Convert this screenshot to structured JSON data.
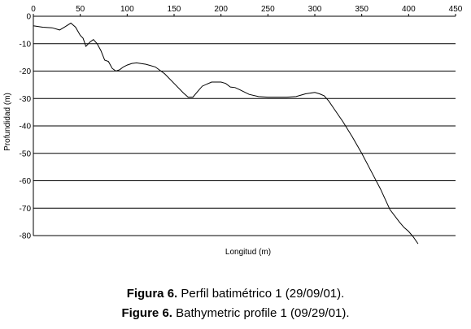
{
  "chart_data": {
    "type": "line",
    "xlabel": "Longitud (m)",
    "ylabel": "Profundidad (m)",
    "xlim": [
      0,
      450
    ],
    "ylim": [
      -80,
      0
    ],
    "xticks": [
      "0",
      "50",
      "100",
      "150",
      "200",
      "250",
      "300",
      "350",
      "400",
      "450"
    ],
    "yticks": [
      "0",
      "-10",
      "-20",
      "-30",
      "-40",
      "-50",
      "-60",
      "-70",
      "-80"
    ],
    "grid": "horizontal",
    "series": [
      {
        "color": "#000000",
        "x": [
          0,
          10,
          20,
          28,
          34,
          40,
          45,
          50,
          53,
          56,
          60,
          64,
          68,
          72,
          76,
          80,
          84,
          88,
          92,
          96,
          100,
          105,
          110,
          120,
          130,
          140,
          150,
          160,
          165,
          170,
          175,
          180,
          190,
          200,
          205,
          210,
          215,
          220,
          230,
          240,
          250,
          260,
          270,
          280,
          290,
          300,
          305,
          310,
          315,
          320,
          330,
          340,
          350,
          360,
          370,
          380,
          390,
          395,
          400,
          405,
          410
        ],
        "y": [
          -3.5,
          -4,
          -4.2,
          -5,
          -3.8,
          -2.5,
          -4,
          -7,
          -8,
          -11,
          -9.5,
          -8.5,
          -10,
          -12.5,
          -16,
          -16.5,
          -19,
          -20,
          -19.5,
          -18.5,
          -17.8,
          -17.2,
          -17,
          -17.5,
          -18.5,
          -21,
          -24.5,
          -28,
          -29.5,
          -29.5,
          -27.5,
          -25.5,
          -24,
          -24,
          -24.5,
          -25.8,
          -26,
          -26.8,
          -28.5,
          -29.3,
          -29.5,
          -29.5,
          -29.5,
          -29.3,
          -28.3,
          -27.8,
          -28.3,
          -29,
          -31,
          -33.5,
          -38.5,
          -44,
          -50,
          -56.5,
          -63,
          -70.5,
          -75,
          -77,
          -78.5,
          -80.5,
          -83
        ]
      }
    ]
  },
  "captions": {
    "es_label": "Figura 6.",
    "es_text": " Perfil batimétrico 1 (29/09/01).",
    "en_label": "Figure 6.",
    "en_text": " Bathymetric profile 1 (09/29/01)."
  }
}
